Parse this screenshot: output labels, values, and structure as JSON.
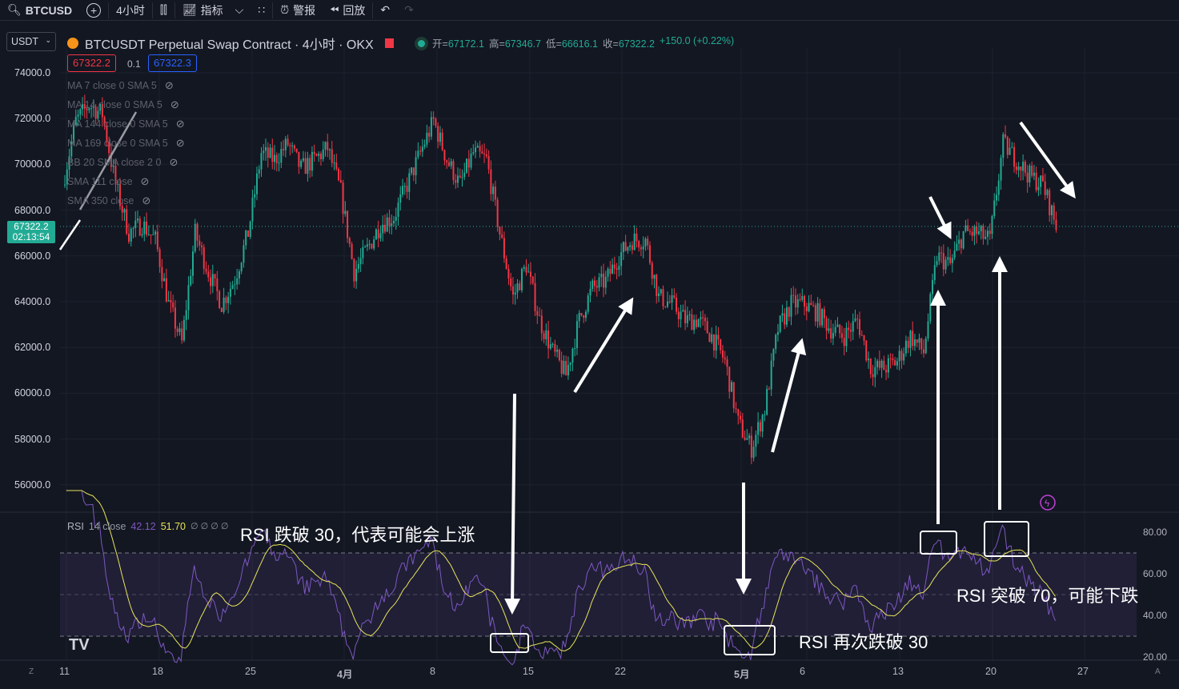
{
  "toolbar": {
    "symbol": "BTCUSD",
    "interval": "4小时",
    "indicators": "指标",
    "alerts": "警报",
    "replay": "回放"
  },
  "header": {
    "currency": "USDT",
    "title": "BTCUSDT Perpetual Swap Contract · 4小时 · OKX",
    "open_label": "开=",
    "open": "67172.1",
    "high_label": "高=",
    "high": "67346.7",
    "low_label": "低=",
    "low": "66616.1",
    "close_label": "收=",
    "close": "67322.2",
    "change": "+150.0 (+0.22%)",
    "bid": "67322.2",
    "spread": "0.1",
    "ask": "67322.3"
  },
  "legend": [
    "MA 7 close 0 SMA 5",
    "MA 14 close 0 SMA 5",
    "MA 144 close 0 SMA 5",
    "MA 169 close 0 SMA 5",
    "BB 20 SMA close 2 0",
    "SMA 111 close",
    "SMA 350 close"
  ],
  "price_axis": [
    "74000.0",
    "72000.0",
    "70000.0",
    "68000.0",
    "66000.0",
    "64000.0",
    "62000.0",
    "60000.0",
    "58000.0",
    "56000.0"
  ],
  "last_price": {
    "price": "67322.2",
    "countdown": "02:13:54"
  },
  "rsi": {
    "label": "RSI",
    "params": "14 close",
    "value": "42.12",
    "ma_value": "51.70",
    "flags": "∅ ∅ ∅ ∅",
    "axis": [
      "80.00",
      "60.00",
      "40.00",
      "20.00"
    ]
  },
  "time_axis": [
    "11",
    "18",
    "25",
    "4月",
    "8",
    "15",
    "22",
    "5月",
    "6",
    "13",
    "20",
    "27"
  ],
  "annotations": {
    "a1": "RSI 跌破 30，代表可能会上涨",
    "a2": "RSI 再次跌破 30",
    "a3": "RSI 突破 70，可能下跌"
  },
  "corner": {
    "left": "Z",
    "right": "A"
  },
  "colors": {
    "up": "#22ab94",
    "down": "#f23645",
    "rsi": "#7e57c2",
    "rsi_ma": "#e8e35a",
    "background": "#131722"
  },
  "price_path": [
    {
      "date": "3/11",
      "close": 69100
    },
    {
      "date": "3/12",
      "close": 71900
    },
    {
      "date": "3/13",
      "close": 72600
    },
    {
      "date": "3/14",
      "close": 72200
    },
    {
      "date": "3/15",
      "close": 69100
    },
    {
      "date": "3/16",
      "close": 67000
    },
    {
      "date": "3/17",
      "close": 67400
    },
    {
      "date": "3/18",
      "close": 66700
    },
    {
      "date": "3/19",
      "close": 63900
    },
    {
      "date": "3/20",
      "close": 62200
    },
    {
      "date": "3/21",
      "close": 67000
    },
    {
      "date": "3/22",
      "close": 65300
    },
    {
      "date": "3/23",
      "close": 63900
    },
    {
      "date": "3/24",
      "close": 65000
    },
    {
      "date": "3/25",
      "close": 67000
    },
    {
      "date": "3/26",
      "close": 70500
    },
    {
      "date": "3/27",
      "close": 70200
    },
    {
      "date": "3/28",
      "close": 70900
    },
    {
      "date": "3/29",
      "close": 69800
    },
    {
      "date": "3/30",
      "close": 70200
    },
    {
      "date": "3/31",
      "close": 70700
    },
    {
      "date": "4/1",
      "close": 68800
    },
    {
      "date": "4/2",
      "close": 65300
    },
    {
      "date": "4/3",
      "close": 66300
    },
    {
      "date": "4/4",
      "close": 67400
    },
    {
      "date": "4/5",
      "close": 67700
    },
    {
      "date": "4/6",
      "close": 69100
    },
    {
      "date": "4/7",
      "close": 70500
    },
    {
      "date": "4/8",
      "close": 71900
    },
    {
      "date": "4/9",
      "close": 70200
    },
    {
      "date": "4/10",
      "close": 69100
    },
    {
      "date": "4/11",
      "close": 70500
    },
    {
      "date": "4/12",
      "close": 70200
    },
    {
      "date": "4/13",
      "close": 67000
    },
    {
      "date": "4/14",
      "close": 64200
    },
    {
      "date": "4/15",
      "close": 65600
    },
    {
      "date": "4/16",
      "close": 63200
    },
    {
      "date": "4/17",
      "close": 61800
    },
    {
      "date": "4/18",
      "close": 60800
    },
    {
      "date": "4/19",
      "close": 63200
    },
    {
      "date": "4/20",
      "close": 64600
    },
    {
      "date": "4/21",
      "close": 64900
    },
    {
      "date": "4/22",
      "close": 66000
    },
    {
      "date": "4/23",
      "close": 66700
    },
    {
      "date": "4/24",
      "close": 66700
    },
    {
      "date": "4/25",
      "close": 64200
    },
    {
      "date": "4/26",
      "close": 63900
    },
    {
      "date": "4/27",
      "close": 63200
    },
    {
      "date": "4/28",
      "close": 63200
    },
    {
      "date": "4/29",
      "close": 62500
    },
    {
      "date": "4/30",
      "close": 61400
    },
    {
      "date": "5/1",
      "close": 58700
    },
    {
      "date": "5/2",
      "close": 57600
    },
    {
      "date": "5/3",
      "close": 59300
    },
    {
      "date": "5/4",
      "close": 62800
    },
    {
      "date": "5/5",
      "close": 63900
    },
    {
      "date": "5/6",
      "close": 63900
    },
    {
      "date": "5/7",
      "close": 63500
    },
    {
      "date": "5/8",
      "close": 62800
    },
    {
      "date": "5/9",
      "close": 62500
    },
    {
      "date": "5/10",
      "close": 63200
    },
    {
      "date": "5/11",
      "close": 61100
    },
    {
      "date": "5/12",
      "close": 61100
    },
    {
      "date": "5/13",
      "close": 61400
    },
    {
      "date": "5/14",
      "close": 62500
    },
    {
      "date": "5/15",
      "close": 61800
    },
    {
      "date": "5/16",
      "close": 66000
    },
    {
      "date": "5/17",
      "close": 65600
    },
    {
      "date": "5/18",
      "close": 67000
    },
    {
      "date": "5/19",
      "close": 67000
    },
    {
      "date": "5/20",
      "close": 66700
    },
    {
      "date": "5/21",
      "close": 70900
    },
    {
      "date": "5/22",
      "close": 70200
    },
    {
      "date": "5/23",
      "close": 69500
    },
    {
      "date": "5/24",
      "close": 69100
    },
    {
      "date": "5/25",
      "close": 67322
    }
  ]
}
